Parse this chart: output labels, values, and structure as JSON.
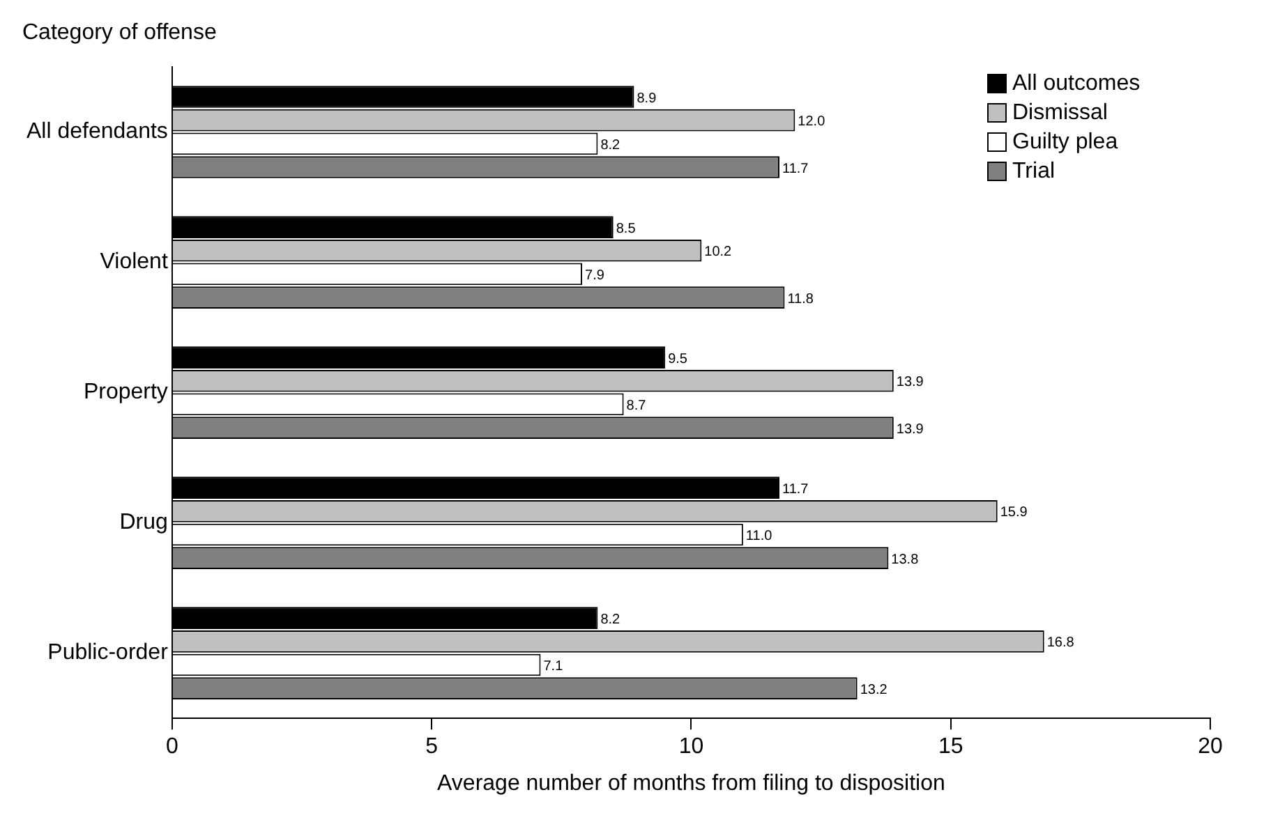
{
  "chart_data": {
    "type": "bar",
    "orientation": "horizontal",
    "ylabel": "Category of offense",
    "xlabel": "Average number of months from filing to disposition",
    "categories": [
      "All defendants",
      "Violent",
      "Property",
      "Drug",
      "Public-order"
    ],
    "series": [
      {
        "name": "All outcomes",
        "color": "#000000",
        "values": [
          8.9,
          8.5,
          9.5,
          11.7,
          8.2
        ],
        "value_labels": [
          "8.9",
          "8.5",
          "9.5",
          "11.7",
          "8.2"
        ]
      },
      {
        "name": "Dismissal",
        "color": "#c0c0c0",
        "values": [
          12.0,
          10.2,
          13.9,
          15.9,
          16.8
        ],
        "value_labels": [
          "12.0",
          "10.2",
          "13.9",
          "15.9",
          "16.8"
        ]
      },
      {
        "name": "Guilty plea",
        "color": "#ffffff",
        "values": [
          8.2,
          7.9,
          8.7,
          11.0,
          7.1
        ],
        "value_labels": [
          "8.2",
          "7.9",
          "8.7",
          "11.0",
          "7.1"
        ]
      },
      {
        "name": "Trial",
        "color": "#808080",
        "values": [
          11.7,
          11.8,
          13.9,
          13.8,
          13.2
        ],
        "value_labels": [
          "11.7",
          "11.8",
          "13.9",
          "13.8",
          "13.2"
        ]
      }
    ],
    "xlim": [
      0,
      20
    ],
    "xticks": [
      0,
      5,
      10,
      15,
      20
    ],
    "grid": false,
    "legend": "top right"
  }
}
